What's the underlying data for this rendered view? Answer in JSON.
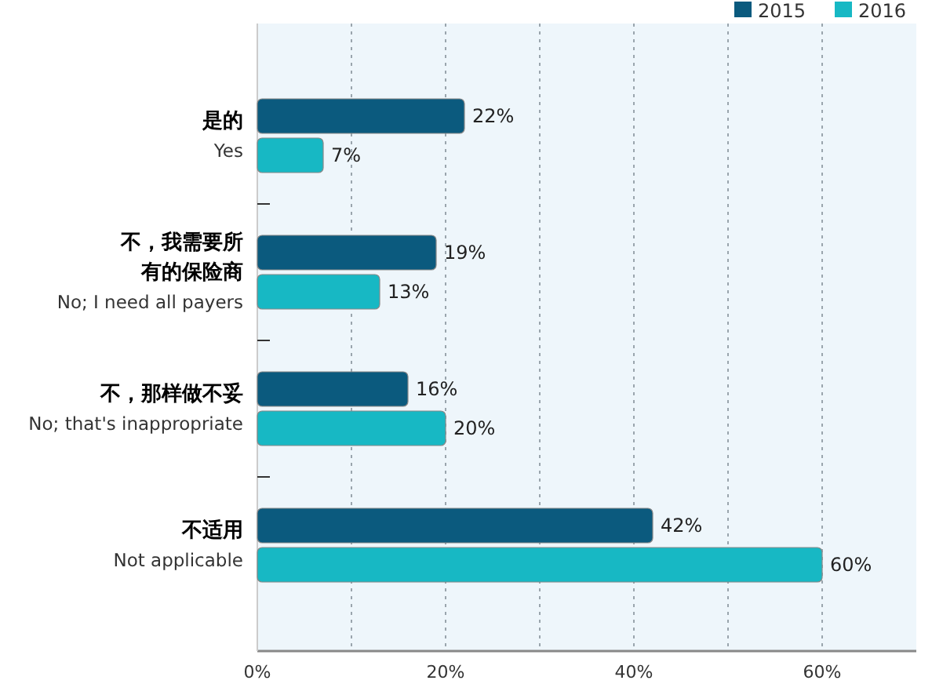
{
  "chart_data": {
    "type": "bar",
    "orientation": "horizontal",
    "categories": [
      "是的\nYes",
      "不，我需要所有的保险商\nNo; I need all payers",
      "不，那样做不妥\nNo; that's inappropriate",
      "不适用\nNot applicable"
    ],
    "series": [
      {
        "name": "2015",
        "color": "#0b5a7e",
        "values": [
          22,
          19,
          16,
          42
        ]
      },
      {
        "name": "2016",
        "color": "#17b8c4",
        "values": [
          7,
          13,
          20,
          60
        ]
      }
    ],
    "xlim": [
      0,
      70
    ],
    "xticks": [
      {
        "value": 0,
        "label": "0%"
      },
      {
        "value": 10,
        "label": null
      },
      {
        "value": 20,
        "label": "20%"
      },
      {
        "value": 30,
        "label": null
      },
      {
        "value": 40,
        "label": "40%"
      },
      {
        "value": 50,
        "label": null
      },
      {
        "value": 60,
        "label": "60%"
      }
    ],
    "grid": "x",
    "legend": "top right",
    "value_labels": [
      [
        "22%",
        "19%",
        "16%",
        "42%"
      ],
      [
        "7%",
        "13%",
        "20%",
        "60%"
      ]
    ]
  }
}
